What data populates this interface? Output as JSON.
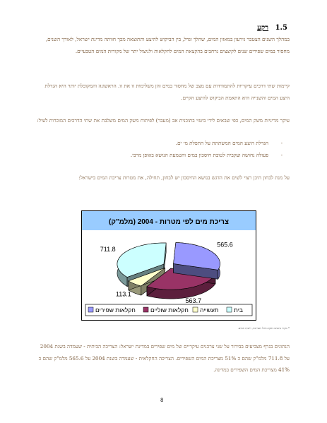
{
  "heading": {
    "number": "1.5",
    "title": "רקע"
  },
  "paragraphs": {
    "p1": "במהלך השנים הצטבר גירעון במאזון המים, שהלך וגדל, בין הביקוש להיצע ותתוצאה מכך חוותה מדינת ישראל, לאורך השנים, מחסור במים שפירים שנים לקיצצים נרחבים בהקצאת המים לחקלאות ולניצול יתר של מקורות המים הטבעיים.",
    "p2": "קיימות שתי דרכים עיקריות להתמודדות עם מצב של מחסור במים והן משלימות זו את זו. הראשונה והמקובלת יותר היא הגדלת היצע המים והשנייה היא התאמת הביקוש להיצע הקיים.",
    "p3": "עיקר מדיניות משק המים, כפי שבאים לידי ביטוי בתוכנית אב (מעבר) לפיתוח משק המים משלבת את שתי הדרכים המוכרות לעיל:",
    "p4": "על  מנת לבחון היכן רצוי לשים את הדגש בנושא החיסכון יש לבחון, תחילה, את מטרות צריכת המים בישראל:",
    "p5": "הנתונים בגרף מצביעים בבירור על שני צרכנים עיקריים של מים שפירים במדינת ישראל: הצריכה הביתית - שעמדה בשנת 2004 על 711.8 מלמ\"ק שהם כ 51% מצריכת המים השפירים.  הצריכה החקלאית - שעמדה בשנת 2004 על 565.6 מלמ\"ק שהם כ 41% מצריכת המים השפירים במדינה."
  },
  "bullets": [
    "הגדלת היצע המים המשתתת על התפלת מי ים.",
    "פעולה נחושה ועקבית לטובת חיסכון במים והטמעת הנושא באופן מרבי."
  ],
  "footnote": "* מקור נתונים: אגף ניהול הצריכה, רשות המים.",
  "page_number": "8",
  "chart_data": {
    "type": "pie",
    "style": "3d-exploded",
    "title": "צריכת מים לפי מטרות - 2004 (מלמ\"ק)",
    "categories": [
      "בית",
      "תעשייה",
      "חקלאות שוליים",
      "חקלאות שפירים"
    ],
    "values": [
      711.8,
      113.1,
      563.7,
      565.6
    ],
    "value_labels": [
      "711.8",
      "113.1",
      "563.7",
      "565.6"
    ],
    "colors": [
      "#ccffff",
      "#ffffcc",
      "#993366",
      "#9999ff"
    ],
    "title_background": "#99ccff",
    "legend_position": "bottom",
    "frame_color": "#000000"
  }
}
